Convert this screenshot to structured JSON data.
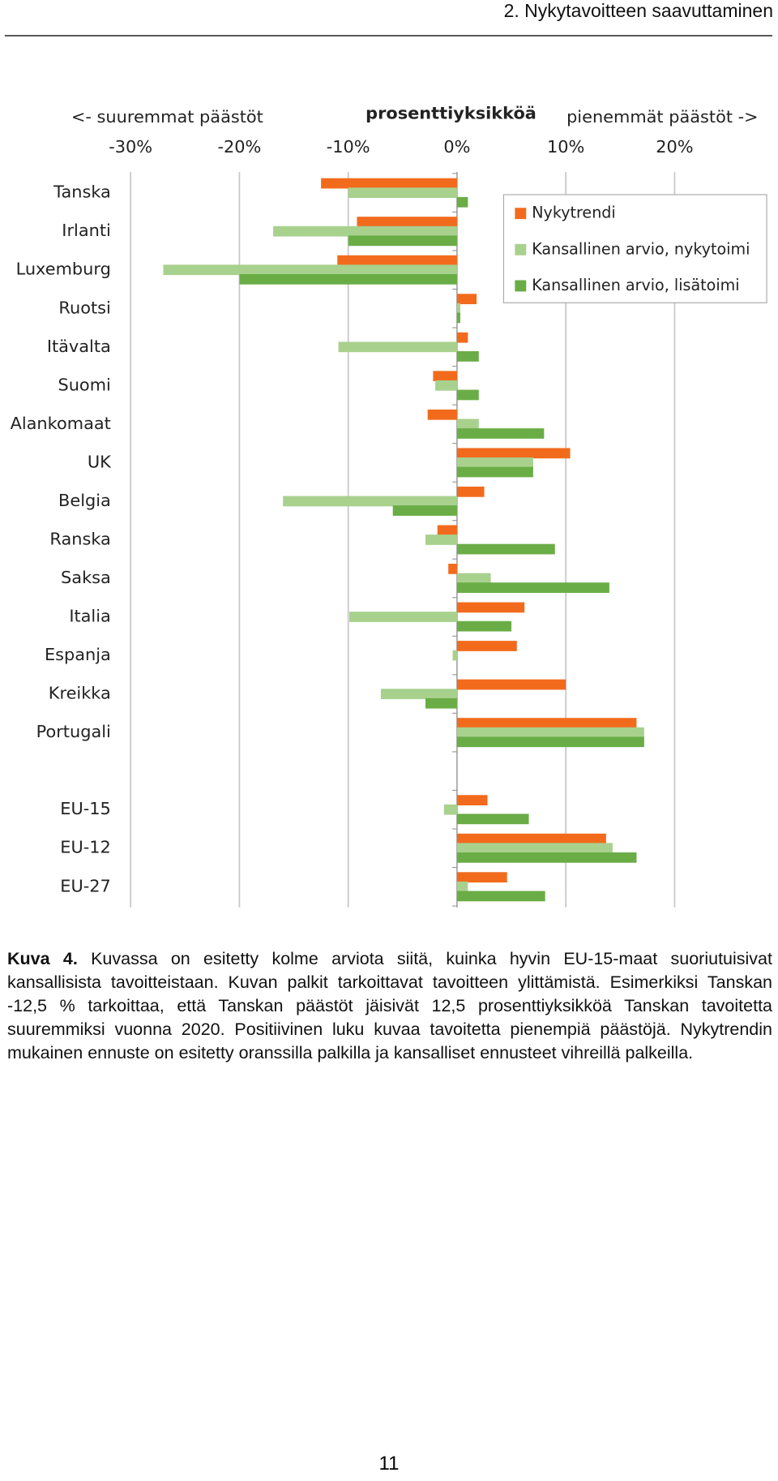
{
  "header": {
    "title": "2. Nykytavoitteen saavuttaminen"
  },
  "chart_data": {
    "type": "bar",
    "orientation": "horizontal",
    "title": "prosenttiyksikköä",
    "annotations": [
      "<- suuremmat päästöt",
      "pienemmät päästöt ->"
    ],
    "categories": [
      "Tanska",
      "Irlanti",
      "Luxemburg",
      "Ruotsi",
      "Itävalta",
      "Suomi",
      "Alankomaat",
      "UK",
      "Belgia",
      "Ranska",
      "Saksa",
      "Italia",
      "Espanja",
      "Kreikka",
      "Portugali",
      null,
      "EU-15",
      "EU-12",
      "EU-27"
    ],
    "series": [
      {
        "name": "Nykytrendi",
        "color": "#f26b1d",
        "values": [
          -12.5,
          -9.2,
          -11,
          1.8,
          1,
          -2.2,
          -2.7,
          10.4,
          2.5,
          -1.8,
          -0.8,
          6.2,
          5.5,
          10,
          16.5,
          null,
          2.8,
          13.7,
          4.6
        ]
      },
      {
        "name": "Kansallinen arvio, nykytoimi",
        "color": "#a9d18e",
        "values": [
          -10,
          -16.9,
          -27,
          0.3,
          -10.9,
          -2,
          2,
          7,
          -16,
          -2.9,
          3.1,
          -9.9,
          -0.4,
          -7,
          17.2,
          null,
          -1.2,
          14.3,
          1
        ]
      },
      {
        "name": "Kansallinen arvio, lisätoimi",
        "color": "#6aad46",
        "values": [
          1,
          -10,
          -20,
          0.3,
          2,
          2,
          8,
          7,
          -5.9,
          9,
          14,
          5,
          0,
          -2.9,
          17.2,
          null,
          6.6,
          16.5,
          8.1
        ]
      }
    ],
    "xlim": [
      -30,
      20
    ],
    "xticks": [
      {
        "value": -30,
        "label": "-30%"
      },
      {
        "value": -20,
        "label": "-20%"
      },
      {
        "value": -10,
        "label": "-10%"
      },
      {
        "value": 0,
        "label": "0%"
      },
      {
        "value": 10,
        "label": "10%"
      },
      {
        "value": 20,
        "label": "20%"
      }
    ],
    "grid": true,
    "legend": "upper right"
  },
  "caption": {
    "label": "Kuva 4.",
    "text": "Kuvassa on esitetty kolme arviota siitä, kuinka hyvin EU-15-maat suoriutuisivat kansallisista tavoitteistaan. Kuvan palkit tarkoittavat tavoitteen ylittämistä. Esimerkiksi Tanskan -12,5 % tarkoittaa, että Tanskan päästöt jäisivät 12,5 prosenttiyksikköä Tanskan tavoitetta suuremmiksi vuonna 2020. Positiivinen luku kuvaa tavoitetta pienempiä päästöjä. Nykytrendin mukainen ennuste on esitetty oranssilla palkilla ja kansalliset ennusteet vihreillä palkeilla."
  },
  "page_number": "11"
}
